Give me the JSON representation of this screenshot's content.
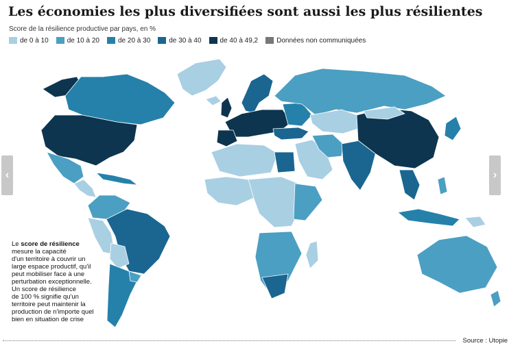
{
  "title": "Les économies les plus diversifiées sont aussi les plus résilientes",
  "subtitle": "Score de la résilience productive par pays, en %",
  "legend": [
    {
      "label": "de 0 à 10",
      "color": "#a9cfe3"
    },
    {
      "label": "de 10 à 20",
      "color": "#4b9fc2"
    },
    {
      "label": "de 20 à 30",
      "color": "#2581aa"
    },
    {
      "label": "de 30 à 40",
      "color": "#1a6690"
    },
    {
      "label": "de 40 à 49,2",
      "color": "#0d3550"
    },
    {
      "label": "Données non communiquées",
      "color": "#777777"
    }
  ],
  "note": {
    "prefix": "Le ",
    "bold": "score de résilience",
    "lines": [
      "mesure la capacité",
      "d'un territoire à couvrir un",
      "large espace productif, qu'il",
      "peut mobiliser face à une",
      "perturbation exceptionnelle.",
      "Un score de résilience",
      "de 100 % signifie qu'un",
      "territoire peut maintenir la",
      "production de n'importe quel",
      "bien en situation de crise"
    ]
  },
  "source": "Source : Utopie",
  "nav": {
    "prev_icon": "chevron-left-icon",
    "next_icon": "chevron-right-icon"
  }
}
